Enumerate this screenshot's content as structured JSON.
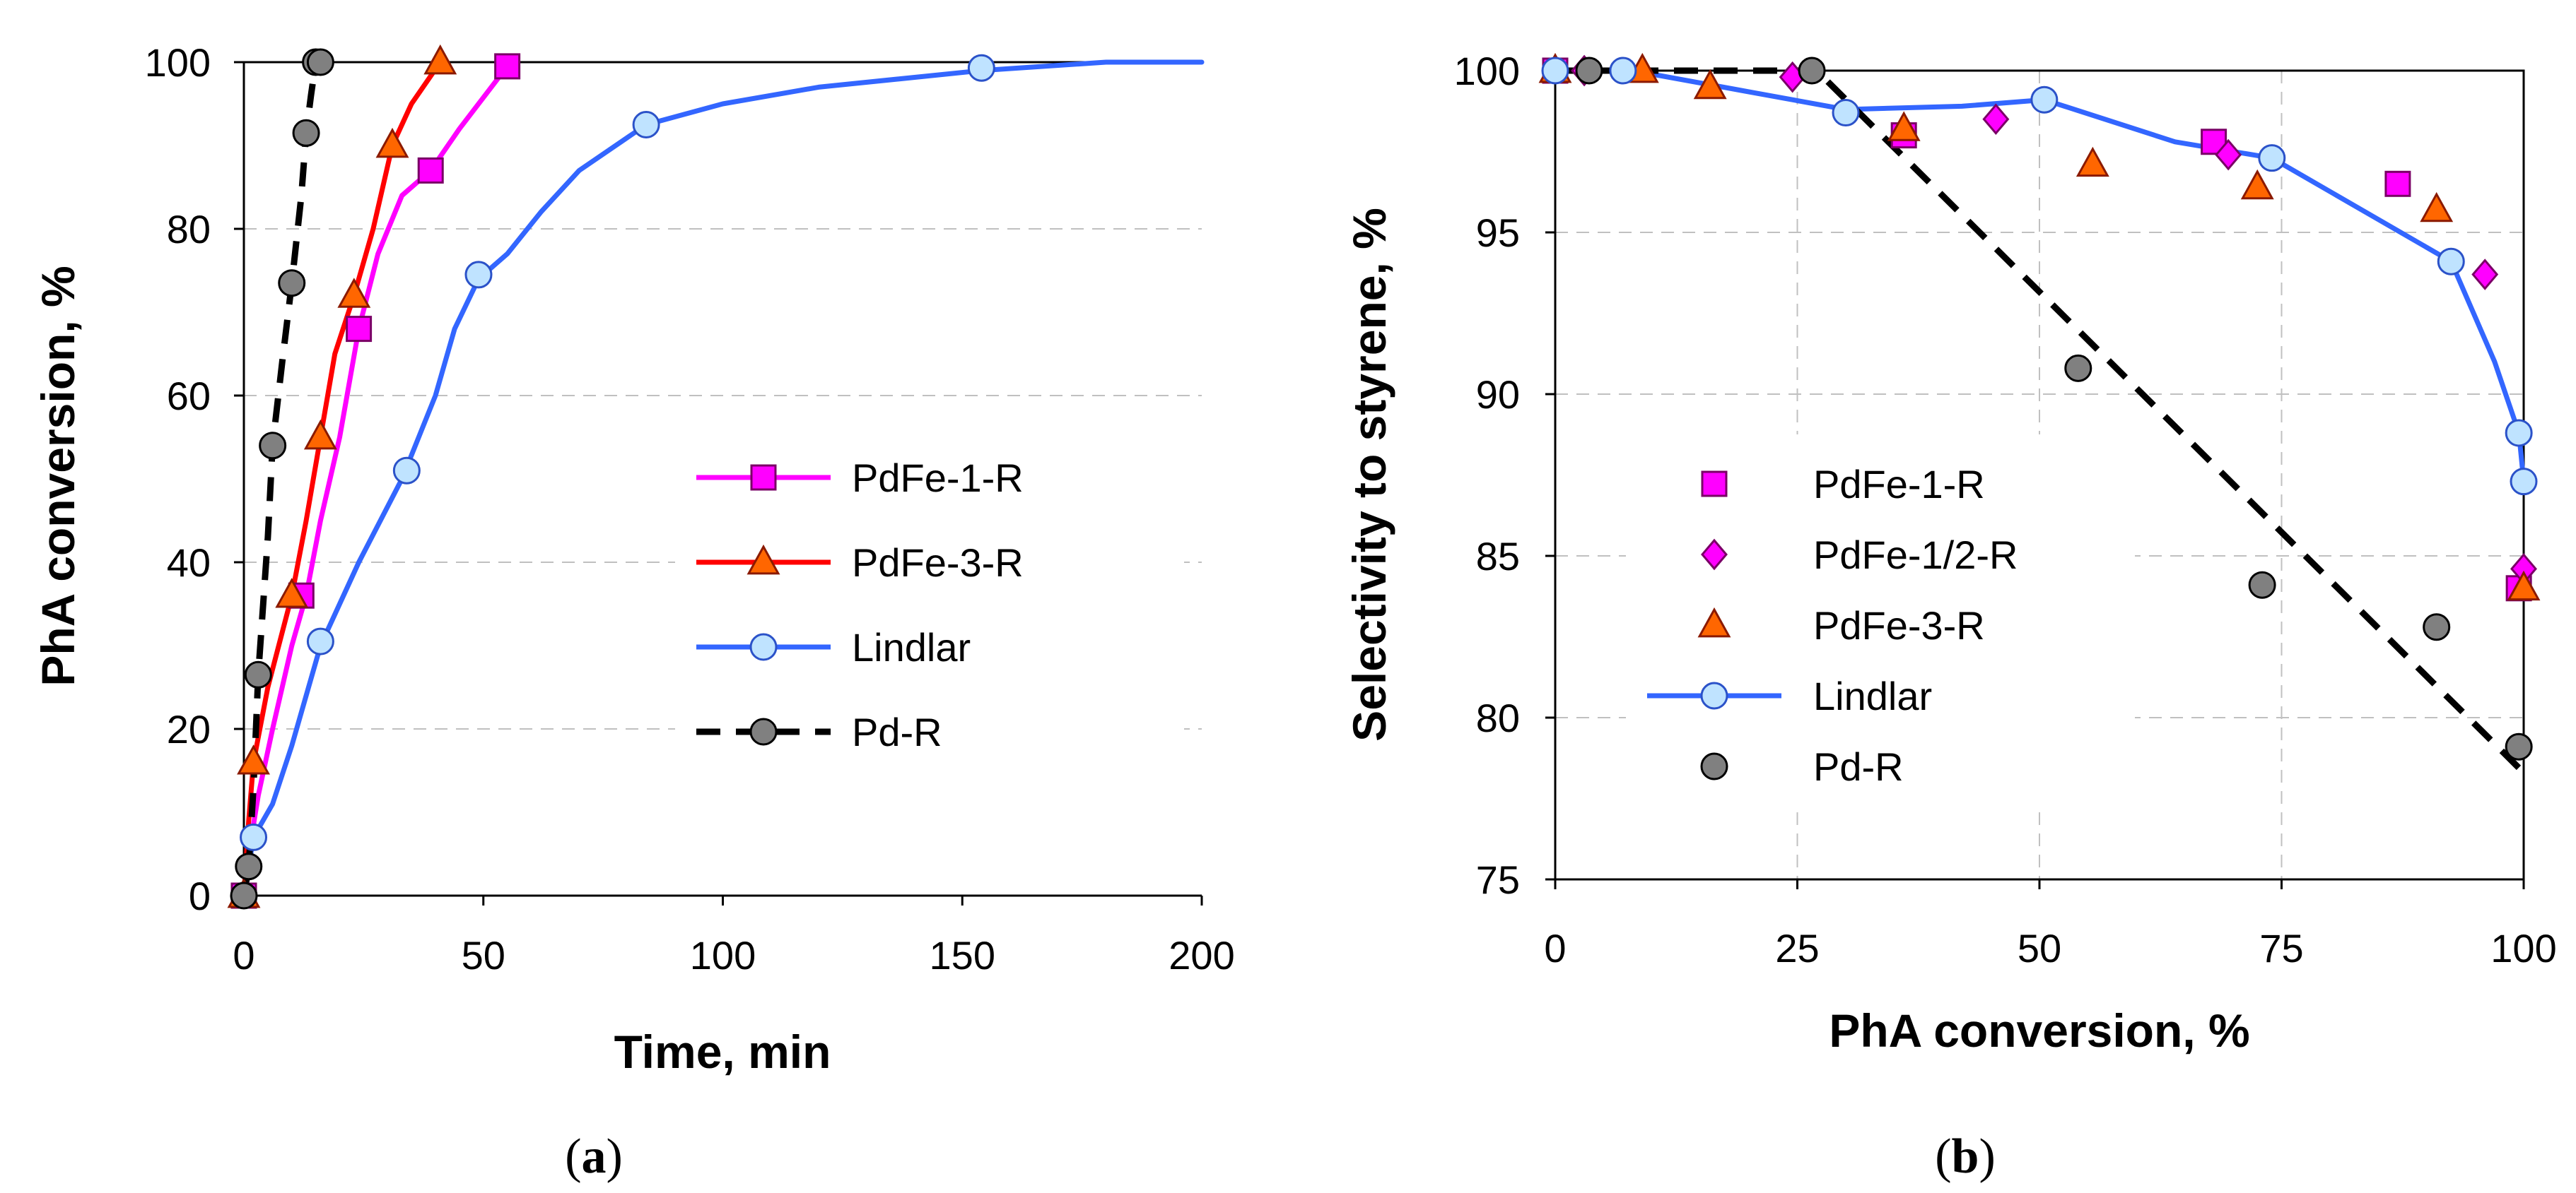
{
  "chart_data": [
    {
      "panel": "a",
      "type": "line",
      "panel_label_open": "(",
      "panel_label_letter": "a",
      "panel_label_close": ")",
      "xlabel": "Time, min",
      "ylabel": "PhA conversion, %",
      "xlim": [
        0,
        200
      ],
      "ylim": [
        0,
        100
      ],
      "xticks": [
        0,
        50,
        100,
        150,
        200
      ],
      "yticks": [
        0,
        20,
        40,
        60,
        80,
        100
      ],
      "legend_position": "center-right",
      "series": [
        {
          "name": "PdFe-1-R",
          "color": "#ff00ff",
          "marker": "square",
          "marker_fill": "#ff00ff",
          "line_style": "solid",
          "line": [
            [
              0,
              0
            ],
            [
              1,
              5
            ],
            [
              3,
              12
            ],
            [
              6,
              20
            ],
            [
              10,
              30
            ],
            [
              13,
              36
            ],
            [
              16,
              45
            ],
            [
              20,
              55
            ],
            [
              24,
              68
            ],
            [
              28,
              77
            ],
            [
              33,
              84
            ],
            [
              39,
              87
            ],
            [
              45,
              92
            ],
            [
              55,
              99.5
            ]
          ],
          "points": [
            [
              0,
              0
            ],
            [
              12,
              36
            ],
            [
              24,
              68
            ],
            [
              39,
              87
            ],
            [
              55,
              99.5
            ]
          ]
        },
        {
          "name": "PdFe-3-R",
          "color": "#ff0000",
          "marker": "triangle",
          "marker_fill": "#ff6600",
          "line_style": "solid",
          "line": [
            [
              0,
              0
            ],
            [
              1,
              9
            ],
            [
              2,
              16
            ],
            [
              5,
              25
            ],
            [
              10,
              36
            ],
            [
              13,
              45
            ],
            [
              16,
              55
            ],
            [
              19,
              65
            ],
            [
              23,
              72
            ],
            [
              27,
              80
            ],
            [
              31,
              90
            ],
            [
              35,
              95
            ],
            [
              41,
              100
            ]
          ],
          "points": [
            [
              0,
              0
            ],
            [
              2,
              16
            ],
            [
              10,
              36
            ],
            [
              16,
              55
            ],
            [
              23,
              72
            ],
            [
              31,
              90
            ],
            [
              41,
              100
            ]
          ]
        },
        {
          "name": "Lindlar",
          "color": "#3366ff",
          "marker": "circle",
          "marker_fill": "#bfe3ff",
          "line_style": "solid",
          "line": [
            [
              0,
              0
            ],
            [
              2,
              7
            ],
            [
              6,
              11
            ],
            [
              10,
              18
            ],
            [
              16,
              30
            ],
            [
              24,
              40
            ],
            [
              33,
              50
            ],
            [
              40,
              60
            ],
            [
              44,
              68
            ],
            [
              49,
              74
            ],
            [
              55,
              77
            ],
            [
              62,
              82
            ],
            [
              70,
              87
            ],
            [
              84,
              92.5
            ],
            [
              100,
              95
            ],
            [
              120,
              97
            ],
            [
              154,
              99
            ],
            [
              180,
              100
            ],
            [
              200,
              100
            ]
          ],
          "points": [
            [
              2,
              7
            ],
            [
              16,
              30.5
            ],
            [
              34,
              51
            ],
            [
              49,
              74.5
            ],
            [
              84,
              92.5
            ],
            [
              154,
              99.3
            ]
          ]
        },
        {
          "name": "Pd-R",
          "color": "#000000",
          "marker": "circle",
          "marker_fill": "#808080",
          "line_style": "dashed",
          "line": [
            [
              0,
              0
            ],
            [
              1,
              3.5
            ],
            [
              2,
              13
            ],
            [
              3,
              26.5
            ],
            [
              5,
              43
            ],
            [
              6,
              54
            ],
            [
              8,
              64
            ],
            [
              10,
              73.5
            ],
            [
              12,
              84
            ],
            [
              13,
              91.5
            ],
            [
              14,
              96
            ],
            [
              15,
              100
            ],
            [
              16,
              100
            ]
          ],
          "points": [
            [
              0,
              0
            ],
            [
              1,
              3.5
            ],
            [
              3,
              26.5
            ],
            [
              6,
              54
            ],
            [
              10,
              73.5
            ],
            [
              13,
              91.5
            ],
            [
              15,
              100
            ],
            [
              16,
              100
            ]
          ]
        }
      ]
    },
    {
      "panel": "b",
      "type": "scatter",
      "panel_label_open": "(",
      "panel_label_letter": "b",
      "panel_label_close": ")",
      "xlabel": "PhA conversion, %",
      "ylabel": "Selectivity to styrene, %",
      "xlim": [
        0,
        100
      ],
      "ylim": [
        75,
        100
      ],
      "xticks": [
        0,
        25,
        50,
        75,
        100
      ],
      "yticks": [
        75,
        80,
        85,
        90,
        95,
        100
      ],
      "legend_position": "center-left",
      "series": [
        {
          "name": "PdFe-1-R",
          "color": "#ff00ff",
          "marker": "square",
          "marker_fill": "#ff00ff",
          "line_style": "none",
          "points": [
            [
              0,
              100
            ],
            [
              36,
              98
            ],
            [
              68,
              97.8
            ],
            [
              87,
              96.5
            ],
            [
              99.5,
              84
            ]
          ]
        },
        {
          "name": "PdFe-1/2-R",
          "color": "#ff00ff",
          "marker": "diamond",
          "marker_fill": "#ff00ff",
          "line_style": "none",
          "points": [
            [
              3,
              100
            ],
            [
              24.5,
              99.8
            ],
            [
              45.5,
              98.5
            ],
            [
              69.5,
              97.4
            ],
            [
              96,
              93.7
            ],
            [
              100,
              84.6
            ]
          ]
        },
        {
          "name": "PdFe-3-R",
          "color": "#ff0000",
          "marker": "triangle",
          "marker_fill": "#ff6600",
          "line_style": "none",
          "points": [
            [
              0,
              100
            ],
            [
              9,
              100
            ],
            [
              16,
              99.5
            ],
            [
              36,
              98.2
            ],
            [
              55.5,
              97.1
            ],
            [
              72.5,
              96.4
            ],
            [
              91,
              95.7
            ],
            [
              100,
              84
            ]
          ]
        },
        {
          "name": "Lindlar",
          "color": "#3366ff",
          "marker": "circle",
          "marker_fill": "#bfe3ff",
          "line_style": "solid",
          "line": [
            [
              0,
              100
            ],
            [
              8,
              100
            ],
            [
              19,
              99.4
            ],
            [
              30,
              98.8
            ],
            [
              42,
              98.9
            ],
            [
              50.5,
              99.1
            ],
            [
              64,
              97.8
            ],
            [
              74,
              97.3
            ],
            [
              92.5,
              94.1
            ],
            [
              97,
              91
            ],
            [
              99.5,
              88.8
            ],
            [
              100,
              87.3
            ]
          ],
          "points": [
            [
              0,
              100
            ],
            [
              7,
              100
            ],
            [
              30,
              98.7
            ],
            [
              50.5,
              99.1
            ],
            [
              74,
              97.3
            ],
            [
              92.5,
              94.1
            ],
            [
              99.5,
              88.8
            ],
            [
              100,
              87.3
            ]
          ]
        },
        {
          "name": "Pd-R",
          "color": "#000000",
          "marker": "circle",
          "marker_fill": "#808080",
          "line_style": "dashed",
          "line": [
            [
              0,
              100
            ],
            [
              27,
              100
            ],
            [
              100,
              78.3
            ]
          ],
          "points": [
            [
              3.5,
              100
            ],
            [
              26.5,
              100
            ],
            [
              54,
              90.8
            ],
            [
              73,
              84.1
            ],
            [
              91,
              82.8
            ],
            [
              99.5,
              79.1
            ]
          ]
        }
      ]
    }
  ]
}
